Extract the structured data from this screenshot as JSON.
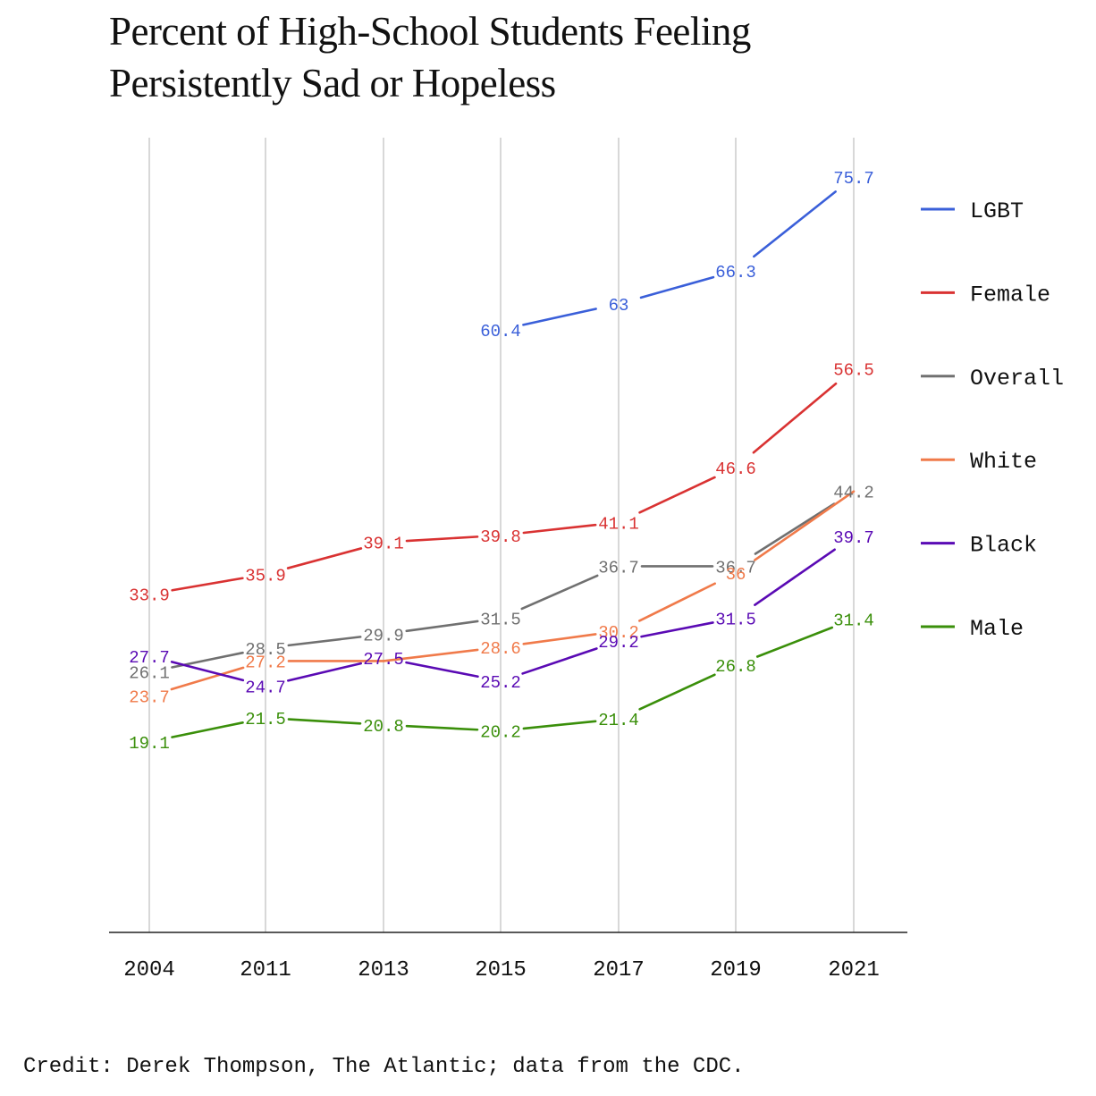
{
  "title_line1": "Percent of High-School Students Feeling",
  "title_line2": "Persistently Sad or Hopeless",
  "credit": "Credit: Derek Thompson, The Atlantic; data from the CDC.",
  "chart_data": {
    "type": "line",
    "title": "Percent of High-School Students Feeling Persistently Sad or Hopeless",
    "categories": [
      "2004",
      "2011",
      "2013",
      "2015",
      "2017",
      "2019",
      "2021"
    ],
    "xlabel": "",
    "ylabel": "",
    "grid": "vertical",
    "legend_placement": "right",
    "series": [
      {
        "name": "LGBT",
        "color": "#3a5fd9",
        "values": [
          null,
          null,
          null,
          60.4,
          63,
          66.3,
          75.7
        ],
        "labels": [
          "",
          "",
          "",
          "60.4",
          "63",
          "66.3",
          "75.7"
        ]
      },
      {
        "name": "Female",
        "color": "#d93232",
        "values": [
          33.9,
          35.9,
          39.1,
          39.8,
          41.1,
          46.6,
          56.5
        ],
        "labels": [
          "33.9",
          "35.9",
          "39.1",
          "39.8",
          "41.1",
          "46.6",
          "56.5"
        ]
      },
      {
        "name": "Overall",
        "color": "#707070",
        "values": [
          26.1,
          28.5,
          29.9,
          31.5,
          36.7,
          36.7,
          44.2
        ],
        "labels": [
          "26.1",
          "28.5",
          "29.9",
          "31.5",
          "36.7",
          "36.7",
          "44.2"
        ]
      },
      {
        "name": "White",
        "color": "#f07a4a",
        "values": [
          23.7,
          27.2,
          27.2,
          28.6,
          30.2,
          36,
          44.2
        ],
        "labels": [
          "23.7",
          "27.2",
          "",
          "28.6",
          "30.2",
          "36",
          ""
        ]
      },
      {
        "name": "Black",
        "color": "#5a0ab4",
        "values": [
          27.7,
          24.7,
          27.5,
          25.2,
          29.2,
          31.5,
          39.7
        ],
        "labels": [
          "27.7",
          "24.7",
          "27.5",
          "25.2",
          "29.2",
          "31.5",
          "39.7"
        ]
      },
      {
        "name": "Male",
        "color": "#3a8f0a",
        "values": [
          19.1,
          21.5,
          20.8,
          20.2,
          21.4,
          26.8,
          31.4
        ],
        "labels": [
          "19.1",
          "21.5",
          "20.8",
          "20.2",
          "21.4",
          "26.8",
          "31.4"
        ]
      }
    ]
  }
}
